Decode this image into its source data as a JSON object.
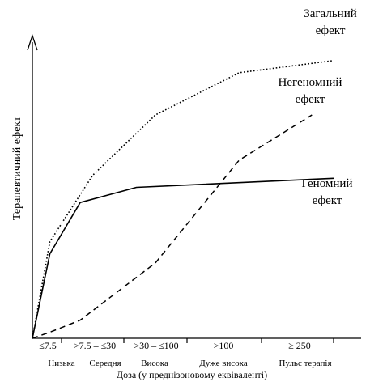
{
  "chart_data": {
    "type": "line",
    "title": "",
    "xlabel": "Доза (у преднізоновому еквіваленті)",
    "ylabel": "Терапевтичний ефект",
    "dose_ranges": [
      "≤7.5",
      ">7.5 – ≤30",
      ">30 – ≤100",
      ">100",
      "≥ 250"
    ],
    "dose_categories": [
      "Низька",
      "Середня",
      "Висока",
      "Дуже висока",
      "Пульс терапія"
    ],
    "category_boundaries": [
      0,
      1,
      2,
      3,
      4,
      5
    ],
    "xlim": [
      0,
      5
    ],
    "ylim": [
      0,
      1
    ],
    "grid": false,
    "y_ticks_shown": false,
    "series": [
      {
        "name": "Загальний ефект",
        "label_lines": [
          "Загальний",
          "ефект"
        ],
        "style": "dotted",
        "x": [
          0,
          0.6,
          1.5,
          2.5,
          3.7,
          5.0
        ],
        "y": [
          0,
          0.32,
          0.54,
          0.74,
          0.88,
          0.92
        ]
      },
      {
        "name": "Негеномний ефект",
        "label_lines": [
          "Негеномний",
          "ефект"
        ],
        "style": "dashed",
        "x": [
          0,
          0.6,
          1.3,
          2.5,
          3.7,
          4.7
        ],
        "y": [
          0,
          0.02,
          0.06,
          0.25,
          0.59,
          0.74
        ]
      },
      {
        "name": "Геномний ефект",
        "label_lines": [
          "Геномний",
          "ефект"
        ],
        "style": "solid",
        "x": [
          0,
          0.6,
          1.3,
          2.2,
          5.0
        ],
        "y": [
          0,
          0.28,
          0.45,
          0.5,
          0.53
        ]
      }
    ]
  }
}
